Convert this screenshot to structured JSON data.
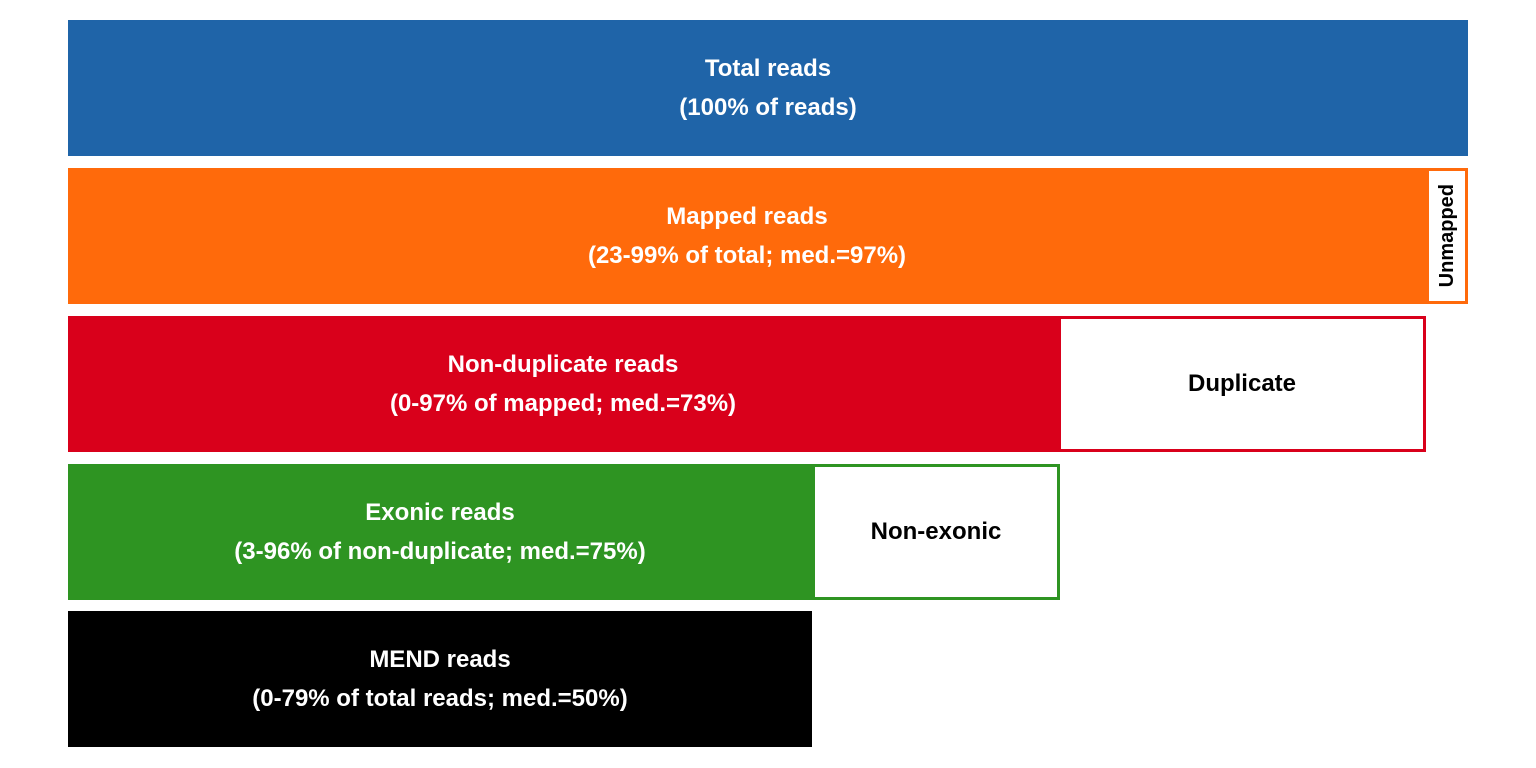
{
  "colors": {
    "total": "#1f64a8",
    "mapped": "#ff6a0b",
    "nondup": "#d9001b",
    "exonic": "#2e9422",
    "mend": "#000000"
  },
  "funnel": {
    "total": {
      "label": "Total reads",
      "detail": "(100% of reads)"
    },
    "mapped": {
      "label": "Mapped reads",
      "detail": "(23-99% of total; med.=97%)",
      "remainder": "Unmapped"
    },
    "nondup": {
      "label": "Non-duplicate reads",
      "detail": "(0-97% of mapped; med.=73%)",
      "remainder": "Duplicate"
    },
    "exonic": {
      "label": "Exonic reads",
      "detail": "(3-96% of non-duplicate; med.=75%)",
      "remainder": "Non-exonic"
    },
    "mend": {
      "label": "MEND reads",
      "detail": "(0-79% of total reads; med.=50%)"
    }
  }
}
